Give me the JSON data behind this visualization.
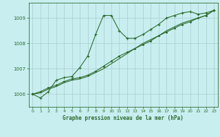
{
  "title": "Graphe pression niveau de la mer (hPa)",
  "bg_color": "#c8eef0",
  "grid_color": "#aacccc",
  "line_color": "#2d6a2d",
  "marker_color": "#2d6a2d",
  "xlim": [
    -0.5,
    23.5
  ],
  "ylim": [
    1005.5,
    1009.6
  ],
  "yticks": [
    1006,
    1007,
    1008,
    1009
  ],
  "xticks": [
    0,
    1,
    2,
    3,
    4,
    5,
    6,
    7,
    8,
    9,
    10,
    11,
    12,
    13,
    14,
    15,
    16,
    17,
    18,
    19,
    20,
    21,
    22,
    23
  ],
  "series": {
    "line1": {
      "x": [
        0,
        1,
        2,
        3,
        4,
        5,
        6,
        7,
        8,
        9,
        10,
        11,
        12,
        13,
        14,
        15,
        16,
        17,
        18,
        19,
        20,
        21,
        22,
        23
      ],
      "y": [
        1006.0,
        1005.85,
        1006.1,
        1006.55,
        1006.65,
        1006.7,
        1007.05,
        1007.5,
        1008.35,
        1009.1,
        1009.1,
        1008.5,
        1008.2,
        1008.2,
        1008.35,
        1008.55,
        1008.75,
        1009.0,
        1009.1,
        1009.2,
        1009.25,
        1009.15,
        1009.2,
        1009.3
      ]
    },
    "line2": {
      "x": [
        0,
        1,
        2,
        3,
        4,
        5,
        6,
        7,
        8,
        9,
        10,
        11,
        12,
        13,
        14,
        15,
        16,
        17,
        18,
        19,
        20,
        21,
        22,
        23
      ],
      "y": [
        1006.0,
        1006.1,
        1006.25,
        1006.35,
        1006.5,
        1006.6,
        1006.65,
        1006.75,
        1006.9,
        1007.1,
        1007.3,
        1007.5,
        1007.65,
        1007.8,
        1007.95,
        1008.1,
        1008.3,
        1008.45,
        1008.6,
        1008.75,
        1008.85,
        1009.0,
        1009.1,
        1009.3
      ]
    },
    "line3": {
      "x": [
        0,
        1,
        2,
        3,
        4,
        5,
        6,
        7,
        8,
        9,
        10,
        11,
        12,
        13,
        14,
        15,
        16,
        17,
        18,
        19,
        20,
        21,
        22,
        23
      ],
      "y": [
        1006.0,
        1006.05,
        1006.2,
        1006.3,
        1006.45,
        1006.55,
        1006.6,
        1006.7,
        1006.85,
        1007.0,
        1007.2,
        1007.4,
        1007.6,
        1007.8,
        1008.0,
        1008.15,
        1008.3,
        1008.5,
        1008.65,
        1008.8,
        1008.9,
        1009.0,
        1009.1,
        1009.3
      ]
    }
  }
}
